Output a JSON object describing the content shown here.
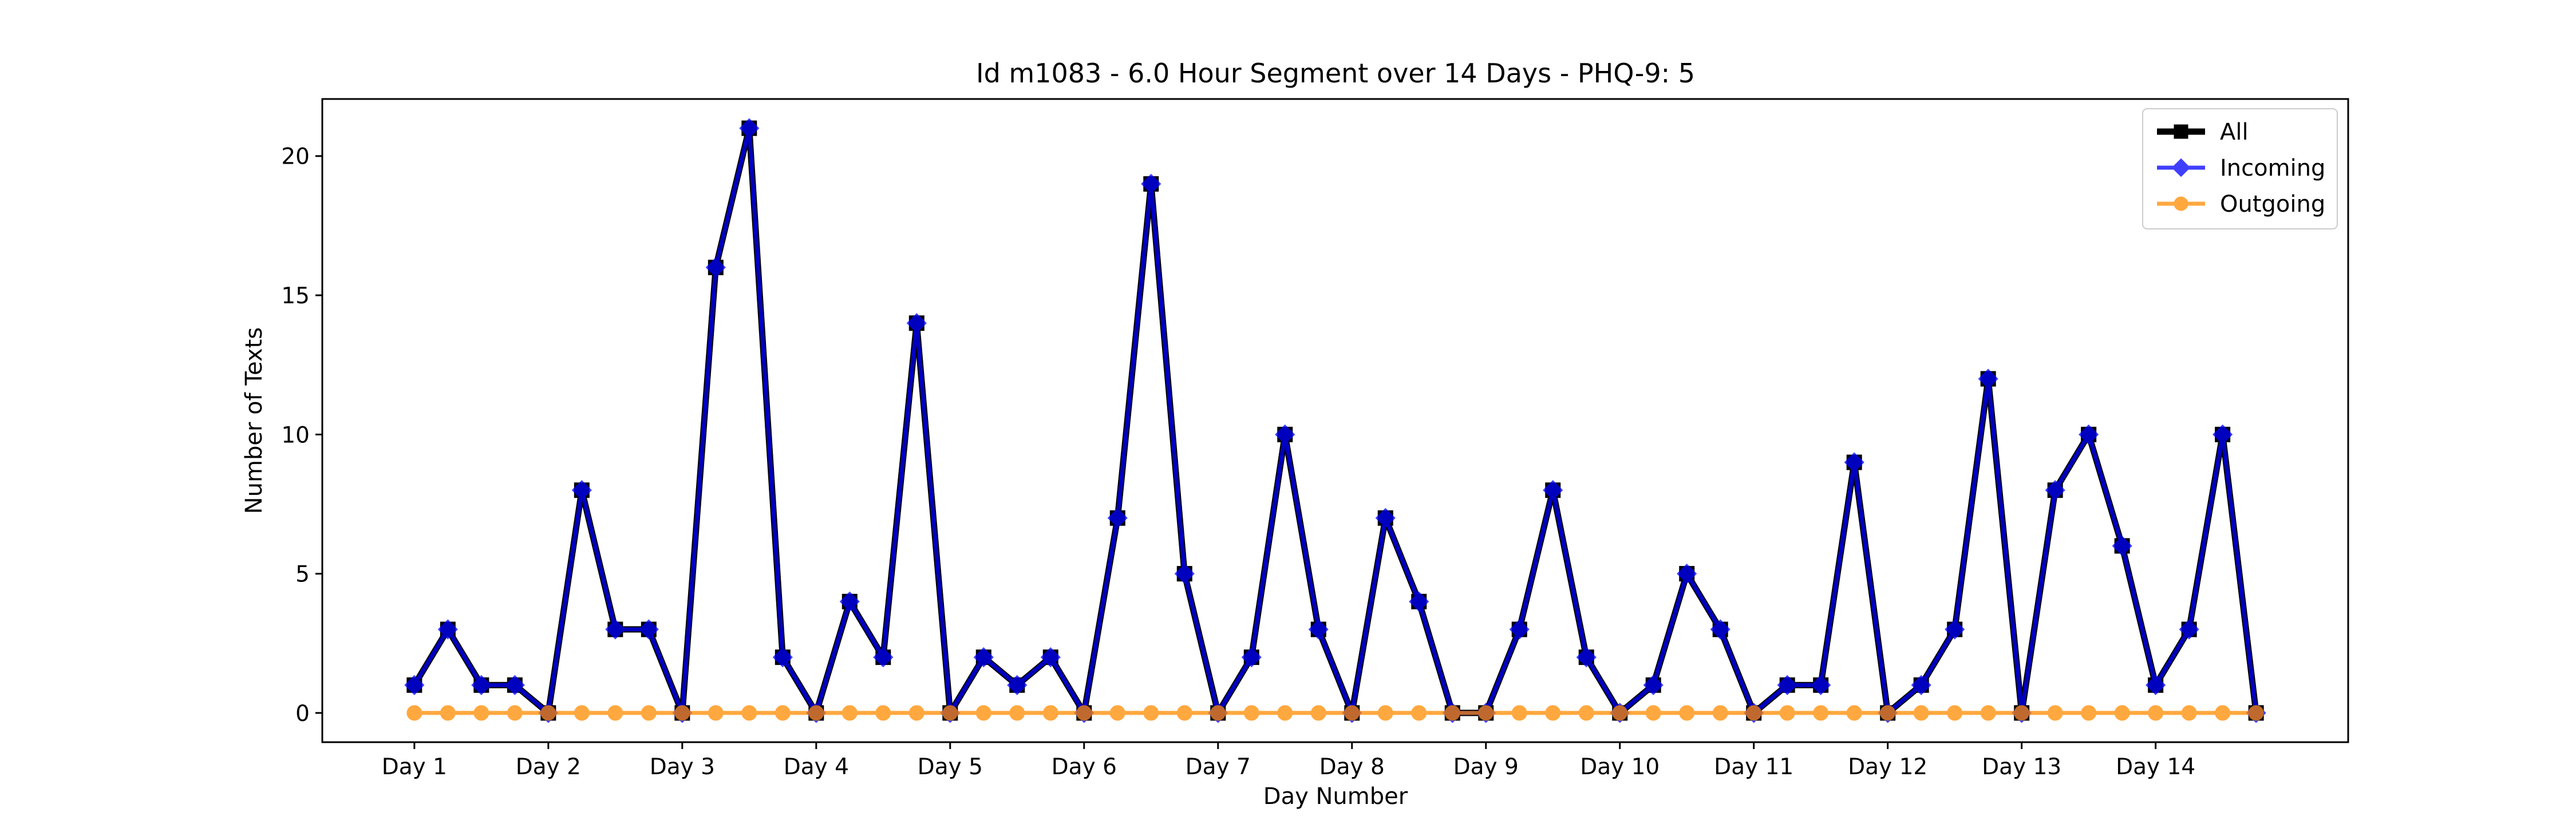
{
  "chart_data": {
    "type": "line",
    "title": "Id m1083 - 6.0 Hour Segment over 14 Days - PHQ-9: 5",
    "xlabel": "Day Number",
    "ylabel": "Number of Texts",
    "x_tick_labels": [
      "Day 1",
      "Day 2",
      "Day 3",
      "Day 4",
      "Day 5",
      "Day 6",
      "Day 7",
      "Day 8",
      "Day 9",
      "Day 10",
      "Day 11",
      "Day 12",
      "Day 13",
      "Day 14"
    ],
    "y_ticks": [
      0,
      5,
      10,
      15,
      20
    ],
    "ylim": [
      -1.05,
      22.05
    ],
    "grid": false,
    "legend_position": "top-right",
    "segments_per_day": 4,
    "series": [
      {
        "name": "All",
        "color": "#000000",
        "marker": "square",
        "values": [
          1,
          3,
          1,
          1,
          0,
          8,
          3,
          3,
          0,
          16,
          21,
          2,
          0,
          4,
          2,
          14,
          0,
          2,
          1,
          2,
          0,
          7,
          19,
          5,
          0,
          2,
          10,
          3,
          0,
          7,
          4,
          0,
          0,
          3,
          8,
          2,
          0,
          1,
          5,
          3,
          0,
          1,
          1,
          9,
          0,
          1,
          3,
          12,
          0,
          8,
          10,
          6,
          1,
          3,
          10,
          0
        ]
      },
      {
        "name": "Incoming",
        "color": "#0000ff",
        "marker": "diamond",
        "values": [
          1,
          3,
          1,
          1,
          0,
          8,
          3,
          3,
          0,
          16,
          21,
          2,
          0,
          4,
          2,
          14,
          0,
          2,
          1,
          2,
          0,
          7,
          19,
          5,
          0,
          2,
          10,
          3,
          0,
          7,
          4,
          0,
          0,
          3,
          8,
          2,
          0,
          1,
          5,
          3,
          0,
          1,
          1,
          9,
          0,
          1,
          3,
          12,
          0,
          8,
          10,
          6,
          1,
          3,
          10,
          0
        ]
      },
      {
        "name": "Outgoing",
        "color": "#ff8c00",
        "marker": "circle",
        "values": [
          0,
          0,
          0,
          0,
          0,
          0,
          0,
          0,
          0,
          0,
          0,
          0,
          0,
          0,
          0,
          0,
          0,
          0,
          0,
          0,
          0,
          0,
          0,
          0,
          0,
          0,
          0,
          0,
          0,
          0,
          0,
          0,
          0,
          0,
          0,
          0,
          0,
          0,
          0,
          0,
          0,
          0,
          0,
          0,
          0,
          0,
          0,
          0,
          0,
          0,
          0,
          0,
          0,
          0,
          0,
          0
        ]
      }
    ]
  }
}
